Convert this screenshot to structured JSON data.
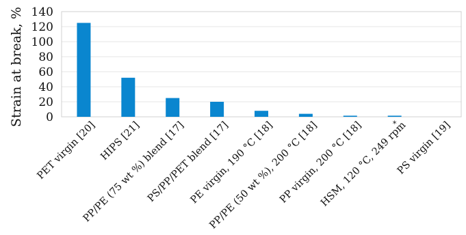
{
  "chart_data": {
    "type": "bar",
    "title": "",
    "xlabel": "",
    "ylabel": "Strain at break, %",
    "ylim": [
      0,
      140
    ],
    "yticks": [
      0,
      20,
      40,
      60,
      80,
      100,
      120,
      140
    ],
    "grid": true,
    "legend": "none",
    "bar_color": "#0a86cf",
    "categories": [
      "PET virgin [20]",
      "HIPS [21]",
      "PP/PE (75 wt %) blend [17]",
      "PS/PP/PET blend [17]",
      "PE virgin, 190 °C [18]",
      "PP/PE (50 wt %), 200 °C [18]",
      "PP virgin, 200 °C [18]",
      "HSM, 120 °C, 249 rpm",
      "PS virgin [19]"
    ],
    "values": [
      125,
      52,
      25,
      20,
      8,
      4,
      1.5,
      1.5,
      0
    ],
    "annotations": [
      {
        "category_index": 7,
        "text": "*"
      }
    ]
  }
}
